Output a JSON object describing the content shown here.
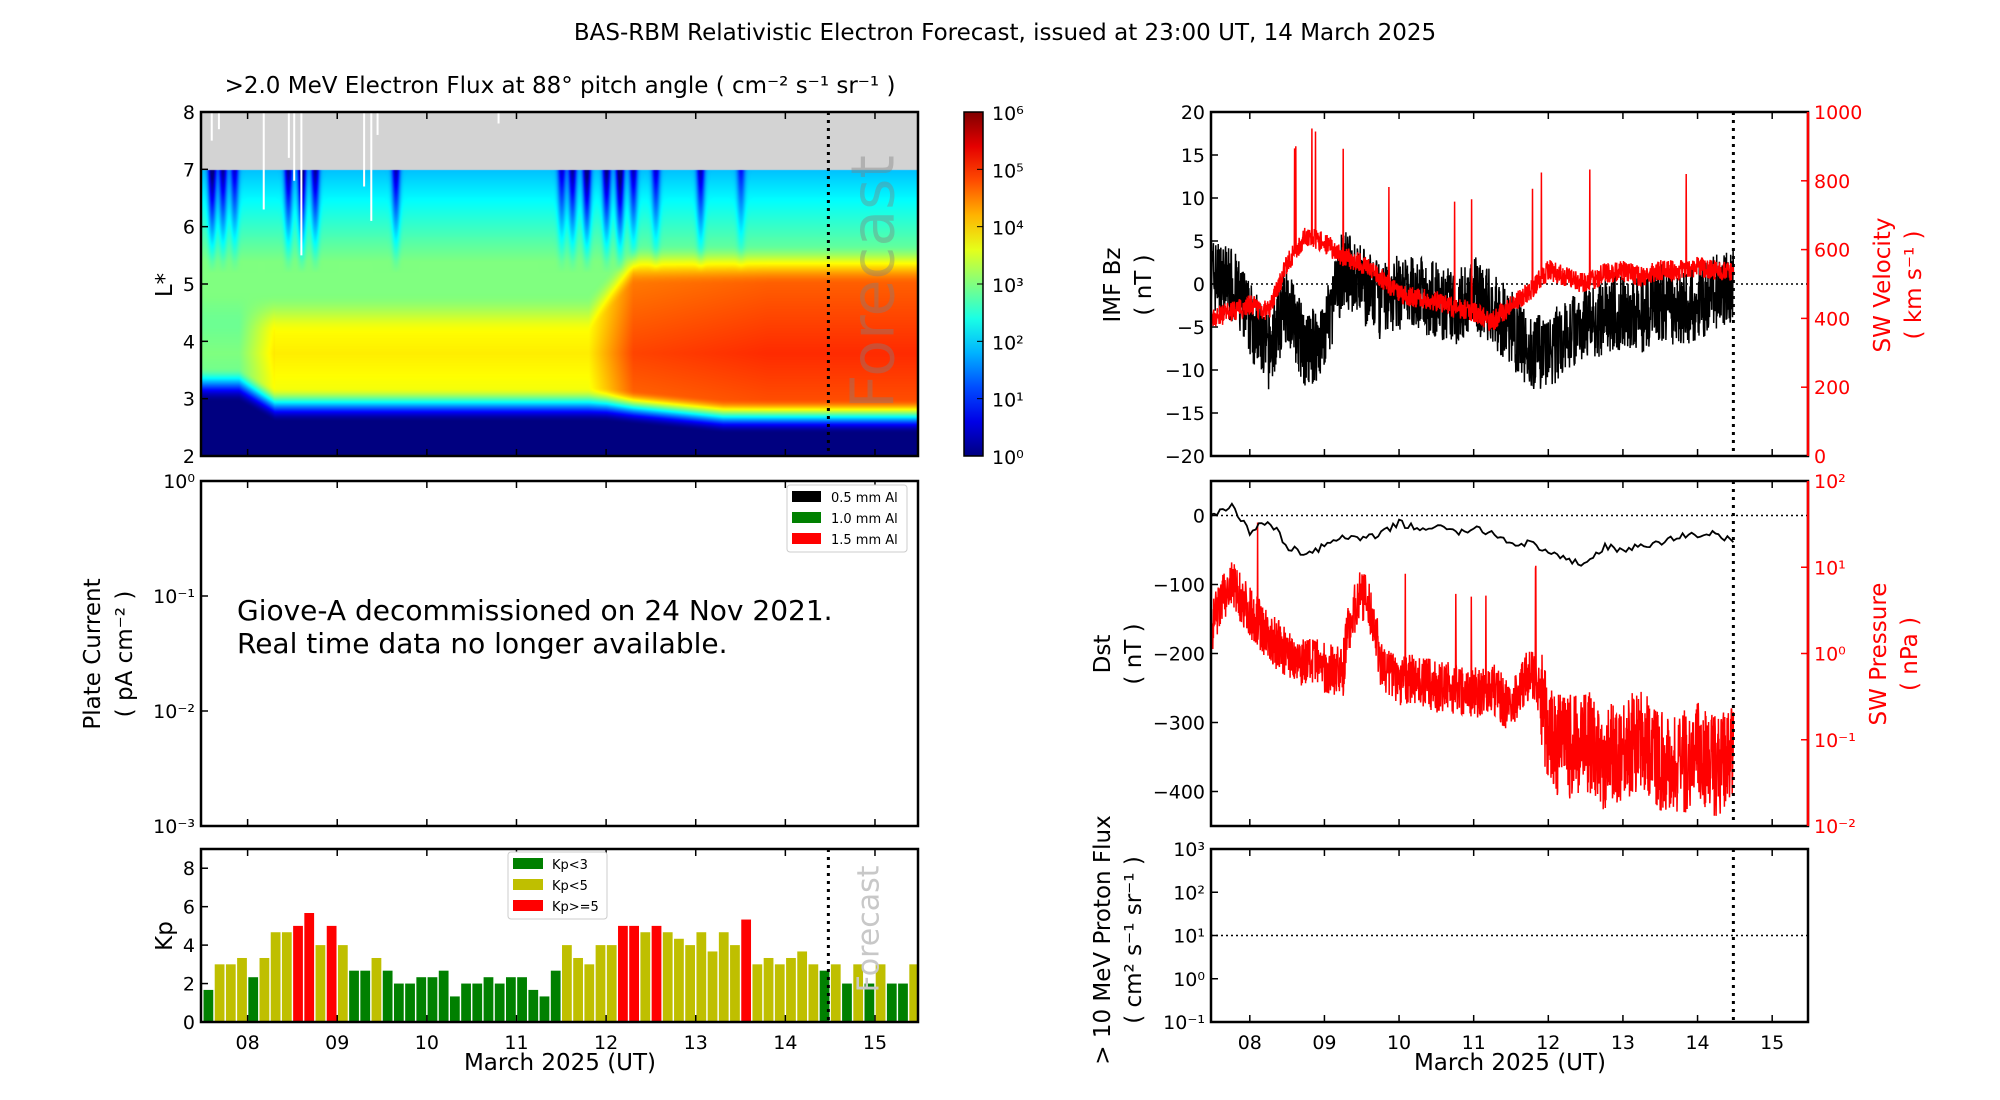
{
  "figure_title": "BAS-RBM Relativistic Electron Forecast, issued at 23:00 UT, 14 March 2025",
  "xlabel": "March 2025 (UT)",
  "x_ticks": [
    "08",
    "09",
    "10",
    "11",
    "12",
    "13",
    "14",
    "15"
  ],
  "forecast_label": "Forecast",
  "colors": {
    "kp_low": "#008000",
    "kp_mid": "#bfbf00",
    "kp_high": "#ff0000",
    "sw": "#ff0000",
    "gray_region": "#d3d3d3"
  },
  "chart_data": [
    {
      "type": "heatmap",
      "title": ">2.0 MeV Electron Flux at 88° pitch angle ( cm⁻² s⁻¹ sr⁻¹ )",
      "ylabel": "L*",
      "ylim": [
        2,
        8
      ],
      "y_ticks": [
        "2",
        "3",
        "4",
        "5",
        "6",
        "7",
        "8"
      ],
      "colorbar": {
        "scale": "log",
        "range": [
          1,
          1000000
        ],
        "colormap": "jet",
        "tick_labels": [
          "10⁰",
          "10¹",
          "10²",
          "10³",
          "10⁴",
          "10⁵",
          "10⁶"
        ]
      },
      "forecast_line_day": 14.48,
      "no_data_region_L": [
        7,
        8
      ]
    },
    {
      "type": "line",
      "ylabel": "Plate Current",
      "ylabel_units": "( pA cm⁻² )",
      "yscale": "log",
      "ylim": [
        0.001,
        1
      ],
      "y_ticks": [
        "10⁻³",
        "10⁻²",
        "10⁻¹",
        "10⁰"
      ],
      "legend": [
        "0.5 mm Al",
        "1.0 mm Al",
        "1.5 mm Al"
      ],
      "legend_colors": [
        "#000000",
        "#008000",
        "#ff0000"
      ],
      "legend_placement": "top-right",
      "notice": [
        "Giove-A decommissioned on 24 Nov 2021.",
        "Real time data no longer available."
      ]
    },
    {
      "type": "bar",
      "ylabel": "Kp",
      "ylim": [
        0,
        9
      ],
      "y_ticks": [
        "0",
        "2",
        "4",
        "6",
        "8"
      ],
      "x_start_day": 7.5,
      "bin_hours": 3,
      "values": [
        1.67,
        3,
        3,
        3.33,
        2.33,
        3.33,
        4.67,
        4.67,
        5,
        5.67,
        4,
        5,
        4,
        2.67,
        2.67,
        3.33,
        2.67,
        2,
        2,
        2.33,
        2.33,
        2.67,
        1.33,
        2,
        2,
        2.33,
        2,
        2.33,
        2.33,
        1.67,
        1.33,
        2.67,
        4,
        3.33,
        3,
        4,
        4,
        5,
        5,
        4.67,
        5,
        4.67,
        4.33,
        4,
        4.67,
        3.67,
        4.67,
        4,
        5.33,
        3,
        3.33,
        3,
        3.33,
        3.67,
        3,
        2.67,
        3,
        2,
        3,
        2,
        3,
        2,
        2,
        3
      ],
      "legend": [
        "Kp<3",
        "Kp<5",
        "Kp>=5"
      ],
      "legend_placement": "top-center"
    },
    {
      "type": "line",
      "ylabel": "IMF Bz",
      "ylabel_units": "( nT )",
      "ylim": [
        -20,
        20
      ],
      "y_ticks": [
        "−20",
        "−15",
        "−10",
        "−5",
        "0",
        "5",
        "10",
        "15",
        "20"
      ],
      "y2label": "SW Velocity",
      "y2label_units": "( km s⁻¹ )",
      "y2lim": [
        0,
        1000
      ],
      "y2_ticks": [
        "0",
        "200",
        "400",
        "600",
        "800",
        "1000"
      ],
      "x_days": [
        7.5,
        7.75,
        8,
        8.25,
        8.5,
        8.75,
        9,
        9.25,
        9.5,
        9.75,
        10,
        10.25,
        10.5,
        10.75,
        11,
        11.25,
        11.5,
        11.75,
        12,
        12.25,
        12.5,
        12.75,
        13,
        13.25,
        13.5,
        13.75,
        14,
        14.25,
        14.48
      ],
      "bz": [
        1,
        0,
        -4,
        -8,
        -2,
        -8,
        -6,
        2,
        0,
        -2,
        -1,
        -1,
        -2,
        -3,
        -1,
        -3,
        -5,
        -8,
        -8,
        -6,
        -4,
        -4,
        -3,
        -4,
        -2,
        -3,
        -2,
        -1,
        0
      ],
      "velocity": [
        400,
        420,
        440,
        420,
        560,
        640,
        620,
        580,
        560,
        520,
        470,
        460,
        450,
        430,
        420,
        390,
        440,
        480,
        540,
        520,
        500,
        530,
        540,
        520,
        540,
        540,
        550,
        540,
        530
      ]
    },
    {
      "type": "line",
      "ylabel": "Dst",
      "ylabel_units": "( nT )",
      "ylim": [
        -450,
        50
      ],
      "y_ticks": [
        "−400",
        "−300",
        "−200",
        "−100",
        "0"
      ],
      "y2label": "SW Pressure",
      "y2label_units": "( nPa )",
      "y2scale": "log",
      "y2lim": [
        0.01,
        100
      ],
      "y2_ticks": [
        "10⁻²",
        "10⁻¹",
        "10⁰",
        "10¹",
        "10²"
      ],
      "x_days": [
        7.5,
        7.75,
        8,
        8.25,
        8.5,
        8.75,
        9,
        9.25,
        9.5,
        9.75,
        10,
        10.25,
        10.5,
        10.75,
        11,
        11.25,
        11.5,
        11.75,
        12,
        12.25,
        12.5,
        12.75,
        13,
        13.25,
        13.5,
        13.75,
        14,
        14.25,
        14.48
      ],
      "dst": [
        0,
        15,
        -25,
        -5,
        -45,
        -55,
        -45,
        -30,
        -35,
        -28,
        -10,
        -20,
        -15,
        -25,
        -20,
        -25,
        -40,
        -40,
        -55,
        -65,
        -70,
        -45,
        -50,
        -45,
        -40,
        -30,
        -28,
        -25,
        -40
      ],
      "pressure": [
        2,
        6,
        3,
        1.5,
        1,
        0.8,
        0.7,
        0.6,
        5,
        0.7,
        0.5,
        0.5,
        0.4,
        0.4,
        0.35,
        0.4,
        0.2,
        0.6,
        0.1,
        0.08,
        0.1,
        0.06,
        0.08,
        0.1,
        0.06,
        0.05,
        0.07,
        0.05,
        0.06
      ]
    },
    {
      "type": "line",
      "ylabel": "> 10 MeV Proton Flux",
      "ylabel_units": "( cm² s⁻¹ sr⁻¹ )",
      "yscale": "log",
      "ylim": [
        0.1,
        1000
      ],
      "y_ticks": [
        "10⁻¹",
        "10⁰",
        "10¹",
        "10²",
        "10³"
      ],
      "threshold": 10
    }
  ]
}
